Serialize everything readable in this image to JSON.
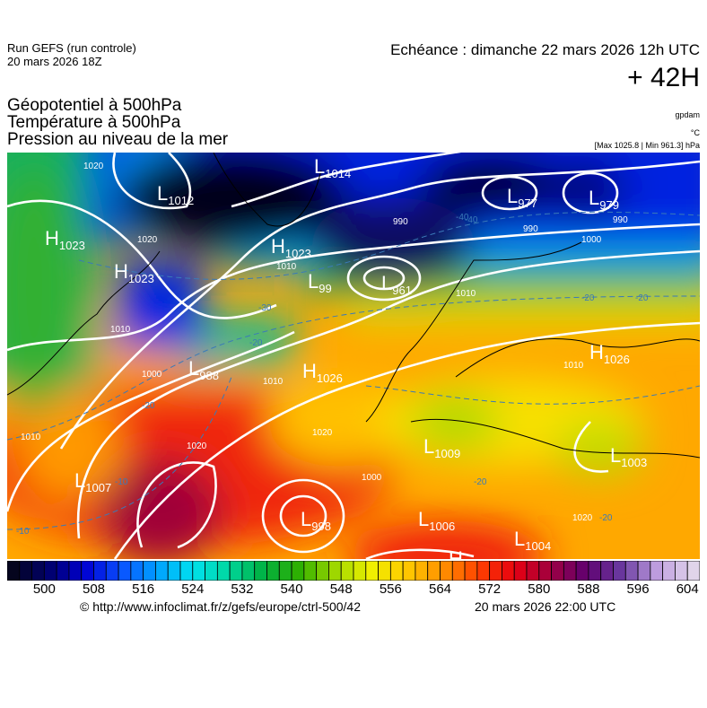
{
  "header": {
    "run_line1": "Run GEFS (run controle)",
    "run_line2": "20 mars 2026 18Z",
    "echeance": "Echéance : dimanche 22 mars 2026 12h UTC",
    "lead": "+ 42H"
  },
  "titles": [
    "Géopotentiel à 500hPa",
    "Température à 500hPa",
    "Pression au niveau de la mer"
  ],
  "units": {
    "geopotential": "gpdam",
    "temperature": "°C",
    "pressure": "[Max 1025.8 | Min 961.3] hPa"
  },
  "map": {
    "centers": [
      {
        "type": "H",
        "value": "1023"
      },
      {
        "type": "L",
        "value": "1012"
      },
      {
        "type": "L",
        "value": "1014"
      },
      {
        "type": "H",
        "value": "1023"
      },
      {
        "type": "H",
        "value": "1023"
      },
      {
        "type": "L",
        "value": "99"
      },
      {
        "type": "L",
        "value": "961"
      },
      {
        "type": "L",
        "value": "977"
      },
      {
        "type": "L",
        "value": "979"
      },
      {
        "type": "L",
        "value": "988"
      },
      {
        "type": "H",
        "value": "1026"
      },
      {
        "type": "H",
        "value": "1026"
      },
      {
        "type": "L",
        "value": "1007"
      },
      {
        "type": "L",
        "value": "998"
      },
      {
        "type": "L",
        "value": "1009"
      },
      {
        "type": "L",
        "value": "1003"
      },
      {
        "type": "L",
        "value": "1006"
      },
      {
        "type": "L",
        "value": "1004"
      },
      {
        "type": "H",
        "value": ""
      }
    ],
    "isobar_labels": [
      "1020",
      "1020",
      "1010",
      "1010",
      "1000",
      "990",
      "990",
      "990",
      "1000",
      "1010",
      "1010",
      "1020",
      "1020",
      "1020",
      "1010",
      "1000",
      "1010"
    ],
    "isotherm_labels": [
      "-40",
      "-40",
      "-30",
      "-20",
      "-20",
      "-20",
      "-20",
      "-10",
      "-10",
      "-20",
      "-20"
    ],
    "colors": {
      "isobar": "#ffffff",
      "isotherm": "#3a7ab8",
      "coast": "#000000"
    }
  },
  "colorbar": {
    "ticks": [
      "500",
      "508",
      "516",
      "524",
      "532",
      "540",
      "548",
      "556",
      "564",
      "572",
      "580",
      "588",
      "596",
      "604"
    ],
    "range": [
      494,
      606
    ],
    "step": 2,
    "stops": [
      "#05051e",
      "#00006e",
      "#0000d2",
      "#0a50ff",
      "#00a0ff",
      "#00e0f0",
      "#00d8a0",
      "#00b040",
      "#30b000",
      "#a0d800",
      "#f0f000",
      "#ffc800",
      "#ff9000",
      "#ff4000",
      "#e80010",
      "#a00040",
      "#600070",
      "#6a3aa0",
      "#c0a0e0",
      "#e0d4ea"
    ]
  },
  "footer": {
    "url": "© http://www.infoclimat.fr/z/gefs/europe/ctrl-500/42",
    "date": "20 mars 2026 22:00 UTC"
  }
}
